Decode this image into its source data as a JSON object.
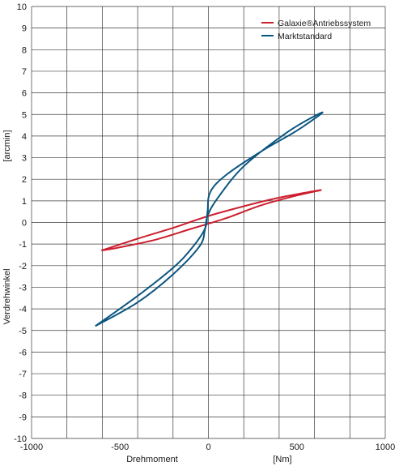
{
  "chart_data": {
    "type": "line",
    "xlabel_parts": [
      "Drehmoment",
      "[Nm]"
    ],
    "ylabel_parts": [
      "Verdrehwinkel",
      "[arcmin]"
    ],
    "xlim": [
      -1000,
      1000
    ],
    "ylim": [
      -10,
      10
    ],
    "x_ticks": [
      -1000,
      -500,
      0,
      500,
      1000
    ],
    "y_ticks": [
      -10,
      -9,
      -8,
      -7,
      -6,
      -5,
      -4,
      -3,
      -2,
      -1,
      0,
      1,
      2,
      3,
      4,
      5,
      6,
      7,
      8,
      9,
      10
    ],
    "x_grid_step": 200,
    "y_grid_step": 1,
    "grid": true,
    "legend_position": "top-right",
    "series": [
      {
        "name": "Galaxie®Antriebssystem",
        "color": "#cc1f2d",
        "x": [
          -605,
          -400,
          -200,
          0,
          200,
          400,
          635,
          500,
          300,
          100,
          -100,
          -300,
          -500,
          -605
        ],
        "y": [
          -1.3,
          -0.75,
          -0.25,
          0.3,
          0.75,
          1.15,
          1.5,
          1.25,
          0.8,
          0.2,
          -0.3,
          -0.8,
          -1.15,
          -1.3
        ]
      },
      {
        "name": "Marktstandard",
        "color": "#0b5680",
        "x": [
          -640,
          -400,
          -200,
          -100,
          -20,
          -5,
          10,
          100,
          300,
          500,
          645,
          450,
          200,
          50,
          -5,
          -20,
          -50,
          -200,
          -400,
          -640
        ],
        "y": [
          -4.8,
          -3.4,
          -2.1,
          -1.25,
          -0.3,
          0.5,
          1.4,
          2.2,
          3.3,
          4.25,
          5.1,
          4.2,
          2.6,
          1.1,
          0.3,
          -0.35,
          -1.1,
          -2.4,
          -3.7,
          -4.8
        ]
      }
    ]
  }
}
